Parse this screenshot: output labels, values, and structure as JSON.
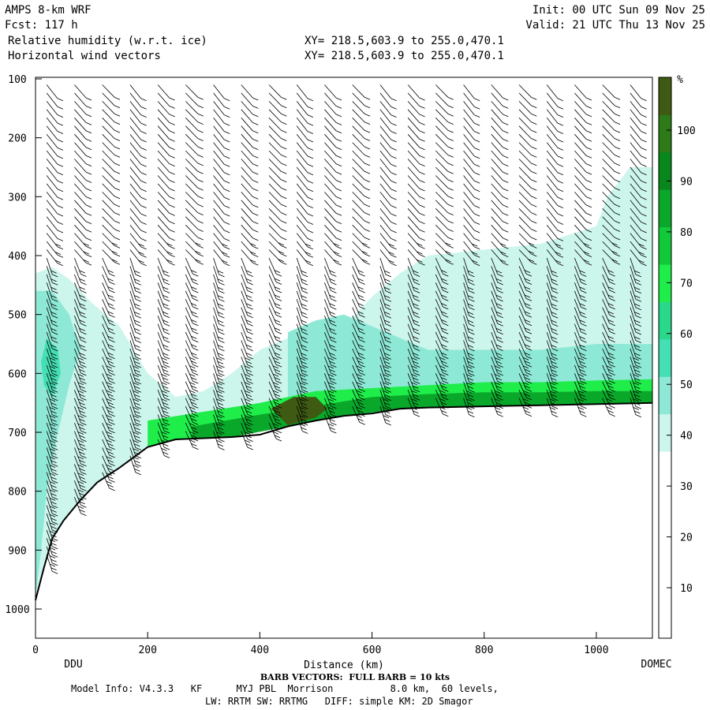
{
  "header": {
    "left1": "AMPS 8-km WRF",
    "left2": "Fcst: 117 h",
    "left3": "Relative humidity (w.r.t. ice)",
    "left4": "Horizontal wind vectors",
    "mid3": "XY= 218.5,603.9 to 255.0,470.1",
    "mid4": "XY= 218.5,603.9 to 255.0,470.1",
    "right1": "Init: 00 UTC Sun 09 Nov 25",
    "right2": "Valid: 21 UTC Thu 13 Nov 25"
  },
  "footer": {
    "barb_note": "BARB VECTORS:  FULL BARB = 10 kts",
    "model_info": "Model Info: V4.3.3   KF      MYJ PBL  Morrison          8.0 km,  60 levels,",
    "physics_info": "LW: RRTM SW: RRTMG   DIFF: simple KM: 2D Smagor"
  },
  "chart_data": {
    "type": "heatmap",
    "xlabel": "Distance (km)",
    "ylabel": "",
    "x_ticks": [
      0,
      200,
      400,
      600,
      800,
      1000
    ],
    "y_ticks": [
      100,
      200,
      300,
      400,
      500,
      600,
      700,
      800,
      900,
      1000
    ],
    "xlim": [
      0,
      1100
    ],
    "ylim": [
      1050,
      100
    ],
    "endpoint_left": "DDU",
    "endpoint_right": "DOMEC",
    "colorbar": {
      "unit": "%",
      "ticks": [
        10,
        20,
        30,
        40,
        50,
        60,
        70,
        80,
        90,
        100
      ],
      "colors": [
        "#ffffff",
        "#ffffff",
        "#ffffff",
        "#ffffff",
        "#ffffff",
        "#ccf5ec",
        "#8ee8d6",
        "#44e0b4",
        "#2ad88a",
        "#1fed4a",
        "#12c93a",
        "#0aa82a",
        "#08871c",
        "#2c7a18",
        "#3f5a12"
      ]
    },
    "terrain_pressure_by_distance": [
      [
        0,
        985
      ],
      [
        15,
        930
      ],
      [
        30,
        880
      ],
      [
        50,
        850
      ],
      [
        80,
        815
      ],
      [
        110,
        785
      ],
      [
        150,
        760
      ],
      [
        200,
        725
      ],
      [
        250,
        712
      ],
      [
        300,
        710
      ],
      [
        350,
        708
      ],
      [
        400,
        704
      ],
      [
        450,
        690
      ],
      [
        500,
        680
      ],
      [
        550,
        672
      ],
      [
        600,
        668
      ],
      [
        650,
        660
      ],
      [
        700,
        658
      ],
      [
        800,
        656
      ],
      [
        900,
        654
      ],
      [
        1000,
        652
      ],
      [
        1100,
        650
      ]
    ],
    "rh_regions": [
      {
        "level": "30-40",
        "polygon": [
          [
            0,
            430
          ],
          [
            30,
            420
          ],
          [
            60,
            440
          ],
          [
            100,
            480
          ],
          [
            150,
            520
          ],
          [
            200,
            600
          ],
          [
            250,
            640
          ],
          [
            300,
            630
          ],
          [
            350,
            600
          ],
          [
            400,
            560
          ],
          [
            450,
            540
          ],
          [
            500,
            560
          ],
          [
            550,
            520
          ],
          [
            600,
            470
          ],
          [
            650,
            430
          ],
          [
            700,
            400
          ],
          [
            800,
            390
          ],
          [
            900,
            380
          ],
          [
            1000,
            350
          ],
          [
            1020,
            300
          ],
          [
            1060,
            250
          ],
          [
            1100,
            250
          ],
          [
            1100,
            650
          ],
          [
            1000,
            652
          ],
          [
            800,
            656
          ],
          [
            600,
            668
          ],
          [
            450,
            690
          ],
          [
            300,
            710
          ],
          [
            200,
            725
          ],
          [
            110,
            785
          ],
          [
            50,
            850
          ],
          [
            15,
            930
          ],
          [
            0,
            985
          ]
        ]
      },
      {
        "level": "40-50",
        "polygon": [
          [
            0,
            460
          ],
          [
            30,
            460
          ],
          [
            60,
            500
          ],
          [
            80,
            560
          ],
          [
            60,
            620
          ],
          [
            40,
            700
          ],
          [
            20,
            800
          ],
          [
            10,
            900
          ],
          [
            0,
            980
          ]
        ]
      },
      {
        "level": "40-50",
        "polygon": [
          [
            450,
            530
          ],
          [
            500,
            510
          ],
          [
            550,
            500
          ],
          [
            600,
            520
          ],
          [
            650,
            540
          ],
          [
            700,
            560
          ],
          [
            800,
            560
          ],
          [
            900,
            560
          ],
          [
            1000,
            550
          ],
          [
            1100,
            550
          ],
          [
            1100,
            650
          ],
          [
            1000,
            652
          ],
          [
            800,
            656
          ],
          [
            600,
            668
          ],
          [
            500,
            680
          ],
          [
            450,
            690
          ]
        ]
      },
      {
        "level": "60-70",
        "polygon": [
          [
            200,
            680
          ],
          [
            300,
            665
          ],
          [
            400,
            650
          ],
          [
            500,
            630
          ],
          [
            600,
            625
          ],
          [
            700,
            620
          ],
          [
            800,
            615
          ],
          [
            900,
            615
          ],
          [
            1000,
            612
          ],
          [
            1100,
            610
          ],
          [
            1100,
            650
          ],
          [
            1000,
            652
          ],
          [
            800,
            656
          ],
          [
            650,
            660
          ],
          [
            550,
            672
          ],
          [
            450,
            690
          ],
          [
            350,
            708
          ],
          [
            250,
            712
          ],
          [
            200,
            725
          ]
        ]
      },
      {
        "level": "80-90",
        "polygon": [
          [
            280,
            690
          ],
          [
            400,
            670
          ],
          [
            500,
            655
          ],
          [
            600,
            640
          ],
          [
            700,
            635
          ],
          [
            800,
            632
          ],
          [
            900,
            632
          ],
          [
            1000,
            630
          ],
          [
            1100,
            630
          ],
          [
            1100,
            650
          ],
          [
            1000,
            652
          ],
          [
            800,
            656
          ],
          [
            650,
            660
          ],
          [
            550,
            672
          ],
          [
            450,
            690
          ],
          [
            350,
            708
          ],
          [
            280,
            710
          ]
        ]
      },
      {
        "level": "90-100",
        "polygon": [
          [
            420,
            660
          ],
          [
            460,
            640
          ],
          [
            500,
            640
          ],
          [
            520,
            660
          ],
          [
            500,
            675
          ],
          [
            450,
            688
          ]
        ]
      },
      {
        "level": "50-60",
        "polygon": [
          [
            20,
            540
          ],
          [
            40,
            560
          ],
          [
            45,
            600
          ],
          [
            30,
            640
          ],
          [
            15,
            620
          ],
          [
            10,
            580
          ]
        ]
      }
    ]
  }
}
